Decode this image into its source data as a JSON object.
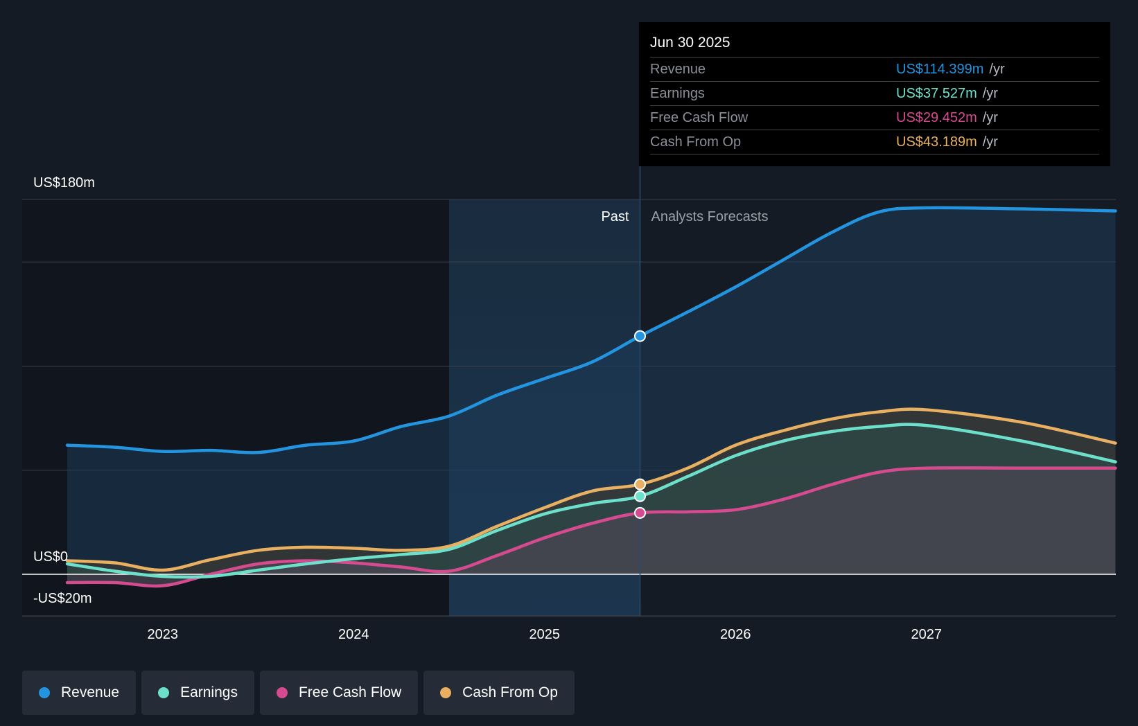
{
  "tooltip": {
    "date": "Jun 30 2025",
    "rows": [
      {
        "name": "Revenue",
        "value": "US$114.399m",
        "unit": "/yr",
        "color": "#2394df"
      },
      {
        "name": "Earnings",
        "value": "US$37.527m",
        "unit": "/yr",
        "color": "#6ce0ca"
      },
      {
        "name": "Free Cash Flow",
        "value": "US$29.452m",
        "unit": "/yr",
        "color": "#d64b8f"
      },
      {
        "name": "Cash From Op",
        "value": "US$43.189m",
        "unit": "/yr",
        "color": "#e8b060"
      }
    ]
  },
  "chart_data": {
    "type": "area",
    "title": "",
    "xlabel": "",
    "ylabel": "",
    "ylim": [
      -20,
      180
    ],
    "y_tick_labels": [
      "US$180m",
      "US$0",
      "-US$20m"
    ],
    "x_ticks": [
      2023,
      2024,
      2025,
      2026,
      2027
    ],
    "xlim": [
      2022.5,
      2027.99
    ],
    "past_label": "Past",
    "forecast_label": "Analysts Forecasts",
    "divider_x": 2025.5,
    "highlight_start_x": 2024.5,
    "series": [
      {
        "name": "Revenue",
        "color": "#2394df",
        "points": [
          [
            2022.5,
            62
          ],
          [
            2022.75,
            61
          ],
          [
            2023.0,
            59
          ],
          [
            2023.25,
            59.5
          ],
          [
            2023.5,
            58.5
          ],
          [
            2023.75,
            62
          ],
          [
            2024.0,
            64
          ],
          [
            2024.25,
            71
          ],
          [
            2024.5,
            76
          ],
          [
            2024.75,
            86
          ],
          [
            2025.0,
            94
          ],
          [
            2025.25,
            102
          ],
          [
            2025.5,
            114.4
          ],
          [
            2025.75,
            126
          ],
          [
            2026.0,
            138
          ],
          [
            2026.25,
            151
          ],
          [
            2026.5,
            164
          ],
          [
            2026.75,
            174
          ],
          [
            2027.0,
            176
          ],
          [
            2027.5,
            175.5
          ],
          [
            2027.99,
            174.5
          ]
        ]
      },
      {
        "name": "Earnings",
        "color": "#6ce0ca",
        "points": [
          [
            2022.5,
            5
          ],
          [
            2022.75,
            1.5
          ],
          [
            2023.0,
            -1
          ],
          [
            2023.25,
            -1
          ],
          [
            2023.5,
            2
          ],
          [
            2023.75,
            5
          ],
          [
            2024.0,
            7.5
          ],
          [
            2024.25,
            9.5
          ],
          [
            2024.5,
            12
          ],
          [
            2024.75,
            21
          ],
          [
            2025.0,
            29
          ],
          [
            2025.25,
            34
          ],
          [
            2025.5,
            37.5
          ],
          [
            2025.75,
            47
          ],
          [
            2026.0,
            57
          ],
          [
            2026.25,
            64
          ],
          [
            2026.5,
            68.5
          ],
          [
            2026.75,
            71
          ],
          [
            2027.0,
            71.5
          ],
          [
            2027.5,
            64
          ],
          [
            2027.99,
            54
          ]
        ]
      },
      {
        "name": "Free Cash Flow",
        "color": "#d64b8f",
        "points": [
          [
            2022.5,
            -4
          ],
          [
            2022.75,
            -4
          ],
          [
            2023.0,
            -5.5
          ],
          [
            2023.25,
            0
          ],
          [
            2023.5,
            5
          ],
          [
            2023.75,
            6.5
          ],
          [
            2024.0,
            5.5
          ],
          [
            2024.25,
            3.5
          ],
          [
            2024.5,
            1.5
          ],
          [
            2024.75,
            9
          ],
          [
            2025.0,
            17.5
          ],
          [
            2025.25,
            24.5
          ],
          [
            2025.5,
            29.5
          ],
          [
            2025.75,
            30
          ],
          [
            2026.0,
            31
          ],
          [
            2026.25,
            36
          ],
          [
            2026.5,
            43
          ],
          [
            2026.75,
            49
          ],
          [
            2027.0,
            51
          ],
          [
            2027.5,
            51
          ],
          [
            2027.99,
            51
          ]
        ]
      },
      {
        "name": "Cash From Op",
        "color": "#e8b060",
        "points": [
          [
            2022.5,
            6.5
          ],
          [
            2022.75,
            5.5
          ],
          [
            2023.0,
            2
          ],
          [
            2023.25,
            7
          ],
          [
            2023.5,
            11.5
          ],
          [
            2023.75,
            13
          ],
          [
            2024.0,
            12.5
          ],
          [
            2024.25,
            11.5
          ],
          [
            2024.5,
            13.5
          ],
          [
            2024.75,
            23
          ],
          [
            2025.0,
            32
          ],
          [
            2025.25,
            40
          ],
          [
            2025.5,
            43.2
          ],
          [
            2025.75,
            51
          ],
          [
            2026.0,
            62
          ],
          [
            2026.25,
            69
          ],
          [
            2026.5,
            74.5
          ],
          [
            2026.75,
            78
          ],
          [
            2027.0,
            79
          ],
          [
            2027.5,
            73
          ],
          [
            2027.99,
            63
          ]
        ]
      }
    ],
    "markers_x": 2025.5
  },
  "legend": [
    {
      "label": "Revenue",
      "color": "#2394df"
    },
    {
      "label": "Earnings",
      "color": "#6ce0ca"
    },
    {
      "label": "Free Cash Flow",
      "color": "#d64b8f"
    },
    {
      "label": "Cash From Op",
      "color": "#e8b060"
    }
  ]
}
